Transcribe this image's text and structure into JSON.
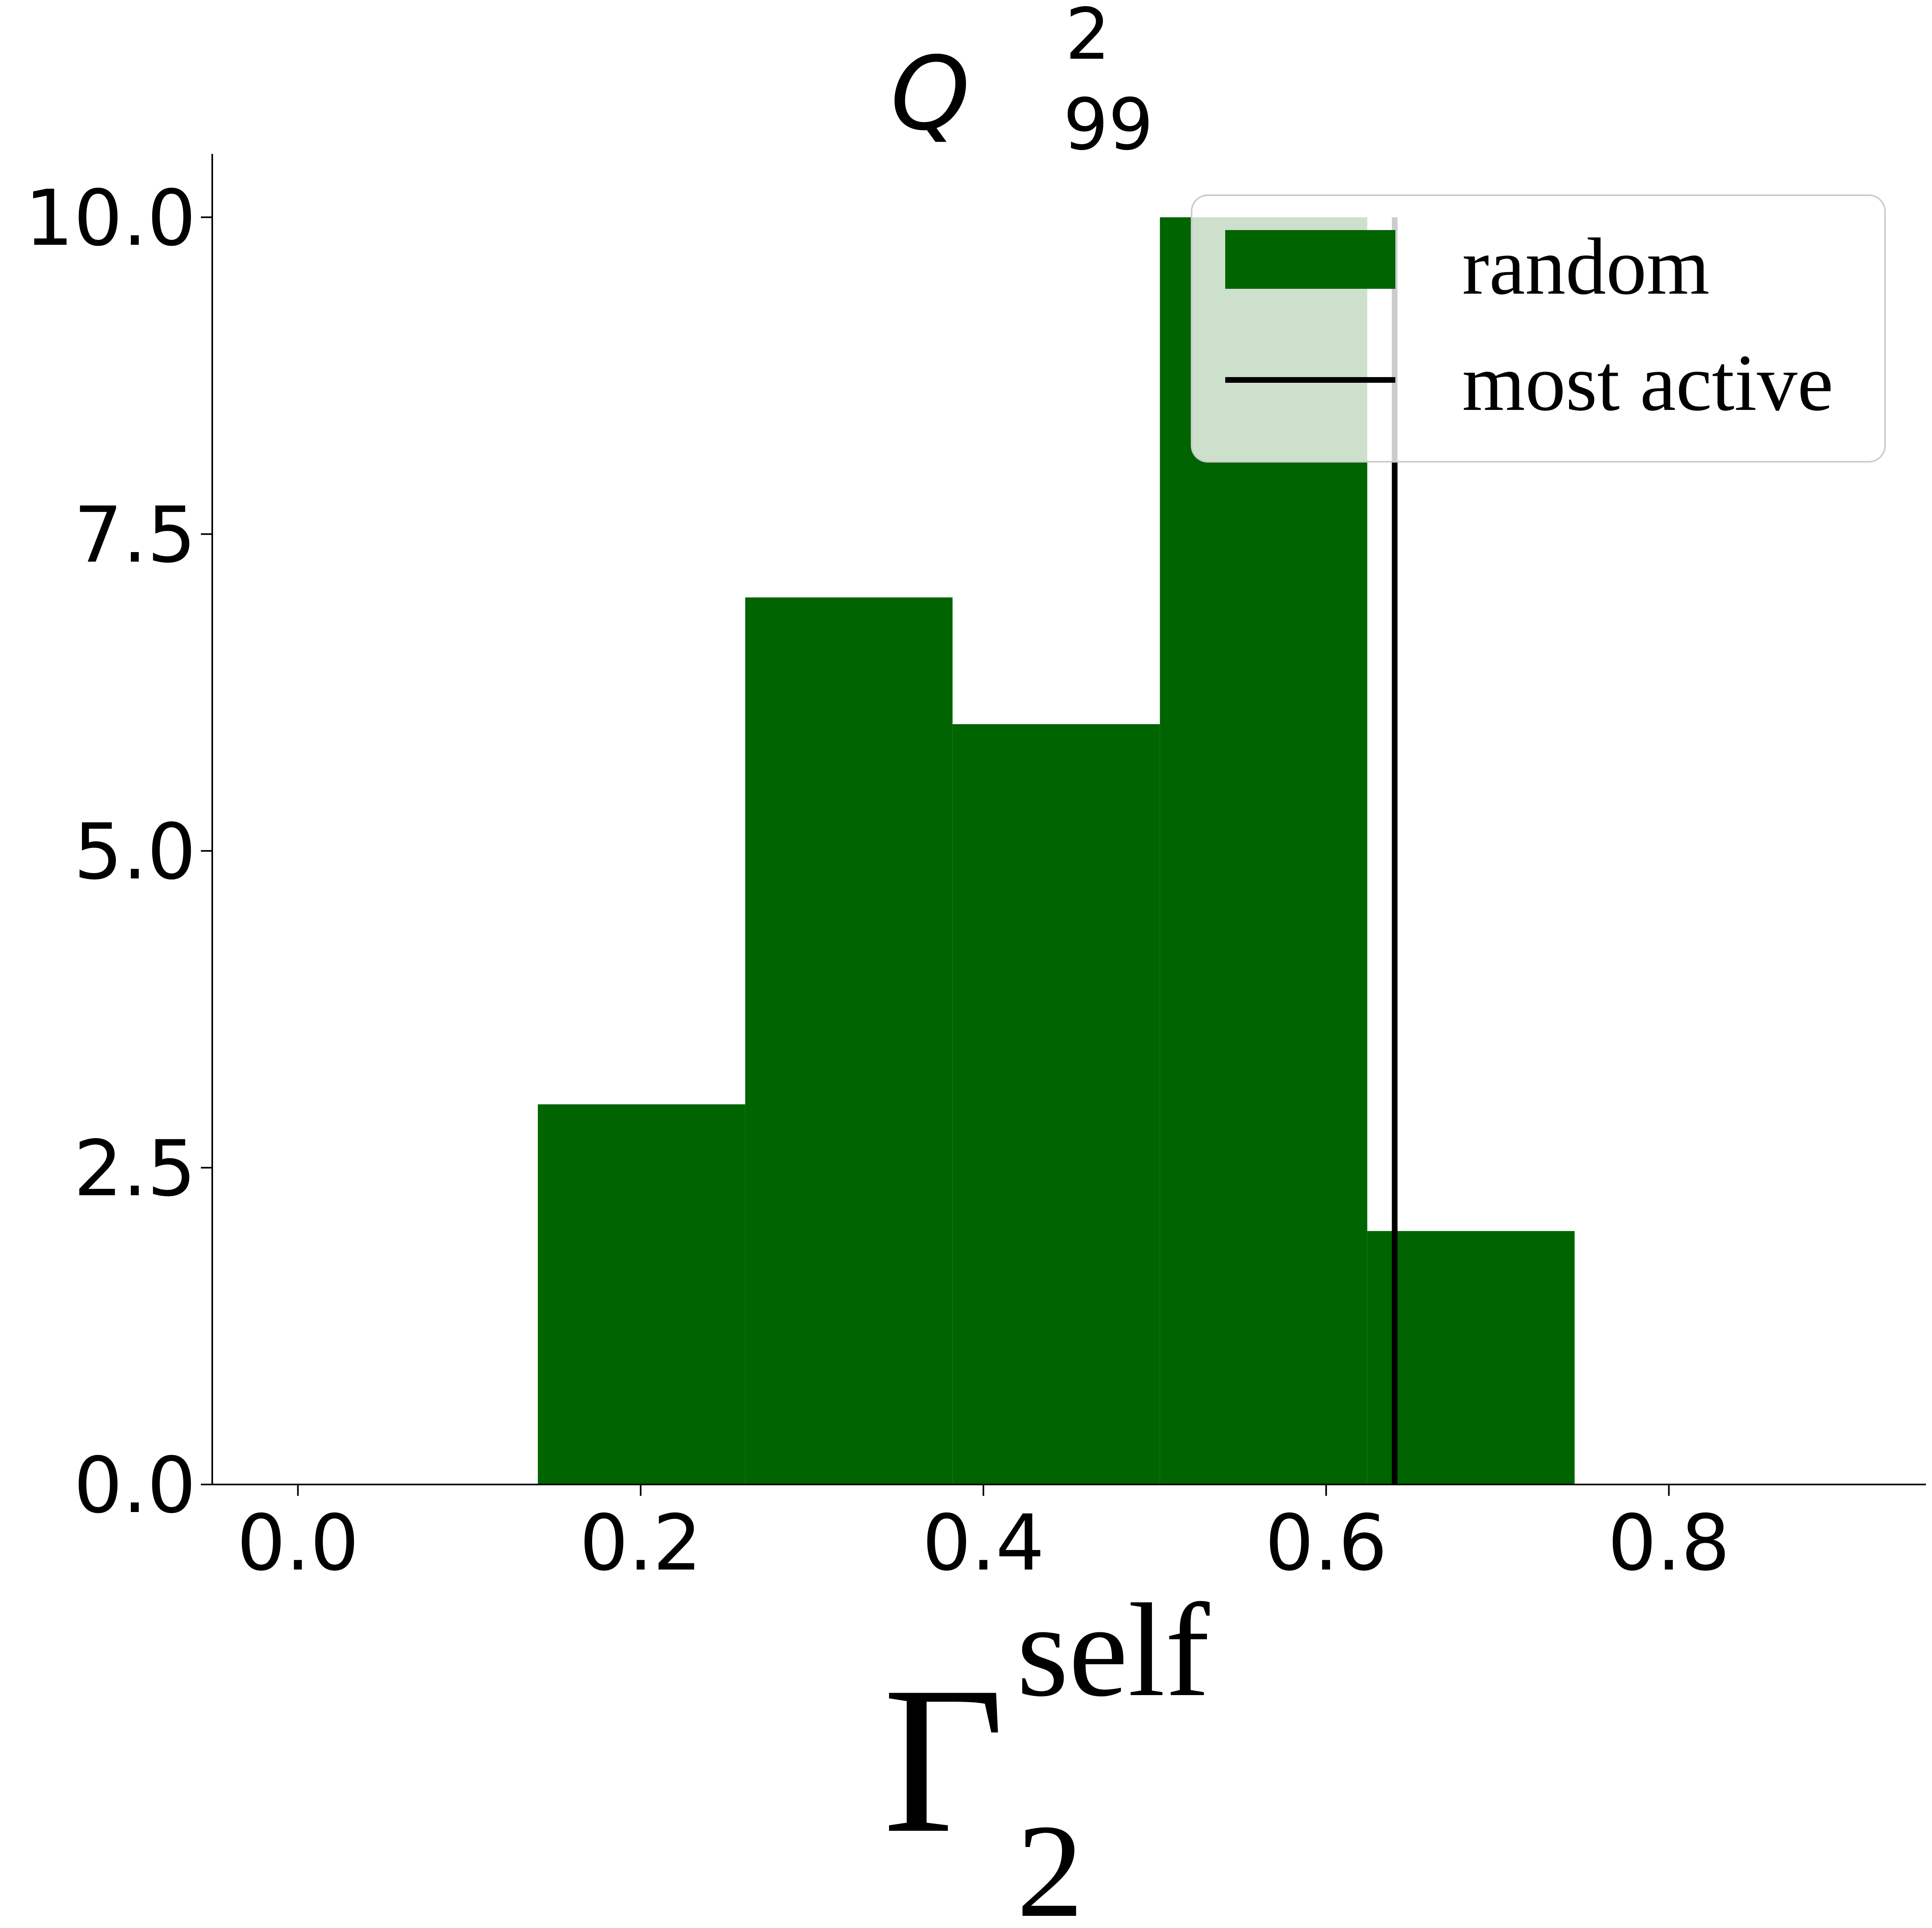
{
  "chart_data": {
    "type": "bar",
    "title": {
      "main": "Q",
      "sup": "2",
      "sub": "99"
    },
    "xlabel": {
      "main": "Γ",
      "sup": "self",
      "sub": "2"
    },
    "ylabel": "",
    "xlim": [
      -0.05,
      0.95
    ],
    "ylim": [
      0,
      10.5
    ],
    "xticks": [
      0.0,
      0.2,
      0.4,
      0.6,
      0.8
    ],
    "xtick_labels": [
      "0.0",
      "0.2",
      "0.4",
      "0.6",
      "0.8"
    ],
    "yticks": [
      0.0,
      2.5,
      5.0,
      7.5,
      10.0
    ],
    "ytick_labels": [
      "0.0",
      "2.5",
      "5.0",
      "7.5",
      "10.0"
    ],
    "grid": false,
    "legend_position": "top-right",
    "series": [
      {
        "name": "random",
        "kind": "histogram",
        "color": "#006400",
        "bins": [
          {
            "x0": 0.14,
            "x1": 0.261,
            "count": 3
          },
          {
            "x0": 0.261,
            "x1": 0.382,
            "count": 7
          },
          {
            "x0": 0.382,
            "x1": 0.503,
            "count": 6
          },
          {
            "x0": 0.503,
            "x1": 0.624,
            "count": 10
          },
          {
            "x0": 0.624,
            "x1": 0.745,
            "count": 2
          }
        ]
      },
      {
        "name": "most active",
        "kind": "vline",
        "color": "#000000",
        "x": 0.64,
        "y_top": 10
      }
    ]
  }
}
